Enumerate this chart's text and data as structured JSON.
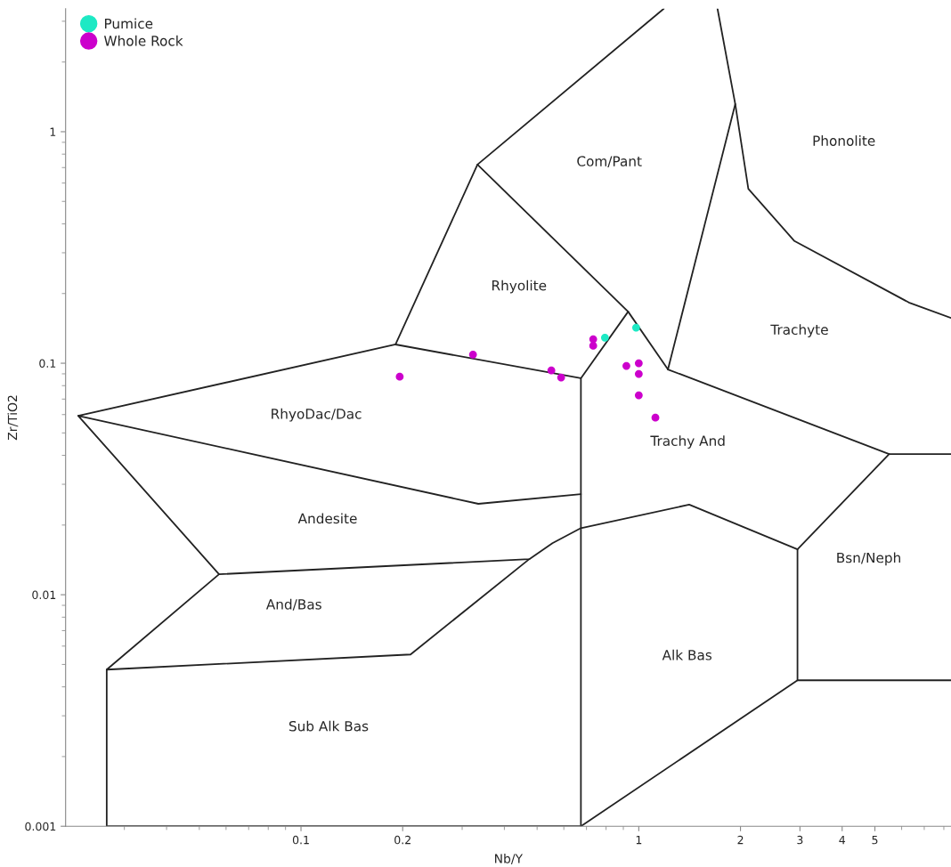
{
  "chart_data": {
    "type": "scatter",
    "xlabel": "Nb/Y",
    "ylabel": "Zr/TiO2",
    "log": "xy",
    "xlim": [
      0.0201,
      8.4
    ],
    "ylim": [
      0.001,
      3.4
    ],
    "xticks": [
      0.1,
      0.2,
      1,
      2,
      3,
      4,
      5
    ],
    "yticks": [
      0.001,
      0.01,
      0.1,
      1
    ],
    "grid": false,
    "legend": "top left",
    "series": [
      {
        "name": "Pumice",
        "marker": "circle",
        "color": "#1de9c4",
        "x": [
          0.794,
          0.982
        ],
        "values": [
          0.129,
          0.1425
        ]
      },
      {
        "name": "Whole Rock",
        "marker": "circle",
        "color": "#cc00cc",
        "x": [
          0.196,
          0.323,
          0.551,
          0.589,
          0.733,
          0.733,
          0.919,
          1.0,
          1.0,
          1.0,
          1.12
        ],
        "values": [
          0.0875,
          0.109,
          0.0931,
          0.0868,
          0.127,
          0.119,
          0.0974,
          0.1,
          0.0899,
          0.0727,
          0.0582
        ]
      },
      {
        "type": "line",
        "color": "#222222",
        "x": [
          0.0219,
          0.1905,
          0.333,
          1.186
        ],
        "values": [
          0.0593,
          0.1205,
          0.721,
          3.4
        ]
      },
      {
        "type": "line",
        "color": "#222222",
        "x": [
          0.333,
          0.93,
          0.674,
          0.674
        ],
        "values": [
          0.721,
          0.167,
          0.0861,
          0.001
        ]
      },
      {
        "type": "line",
        "color": "#222222",
        "x": [
          1.71,
          1.93,
          1.22,
          0.93
        ],
        "values": [
          3.4,
          1.316,
          0.094,
          0.167
        ]
      },
      {
        "type": "line",
        "color": "#222222",
        "x": [
          1.93,
          2.11,
          2.89,
          6.3,
          8.4
        ],
        "values": [
          1.316,
          0.567,
          0.337,
          0.183,
          0.157
        ]
      },
      {
        "type": "line",
        "color": "#222222",
        "x": [
          0.1905,
          0.674
        ],
        "values": [
          0.1205,
          0.0861
        ]
      },
      {
        "type": "line",
        "color": "#222222",
        "x": [
          1.22,
          5.51,
          8.4
        ],
        "values": [
          0.094,
          0.0405,
          0.0405
        ]
      },
      {
        "type": "line",
        "color": "#222222",
        "x": [
          5.51,
          2.95,
          2.95,
          8.4
        ],
        "values": [
          0.0405,
          0.0157,
          0.00427,
          0.00427
        ]
      },
      {
        "type": "line",
        "marker": "none",
        "color": "#222222",
        "x": [
          2.95,
          1.41,
          0.674,
          0.555,
          0.474,
          0.0572
        ],
        "values": [
          0.0157,
          0.0245,
          0.0194,
          0.0167,
          0.01425,
          0.01226
        ]
      },
      {
        "type": "line",
        "color": "#222222",
        "x": [
          2.95,
          0.674,
          0.0266,
          0.0266,
          0.0572,
          0.0219,
          0.335,
          0.674
        ],
        "values": [
          0.00427,
          0.001,
          0.001,
          0.00475,
          0.01226,
          0.0593,
          0.0247,
          0.0272
        ]
      },
      {
        "type": "line",
        "marker": "none",
        "color": "#222222",
        "x": [
          0.474,
          0.211,
          0.0266
        ],
        "values": [
          0.01425,
          0.00552,
          0.00475
        ]
      }
    ],
    "annotations": [
      "Phonolite",
      "Com/Pant",
      "Rhyolite",
      "Trachyte",
      "RhyoDac/Dac",
      "Trachy And",
      "Andesite",
      "Bsn/Neph",
      "And/Bas",
      "Alk Bas",
      "Sub Alk Bas"
    ]
  }
}
